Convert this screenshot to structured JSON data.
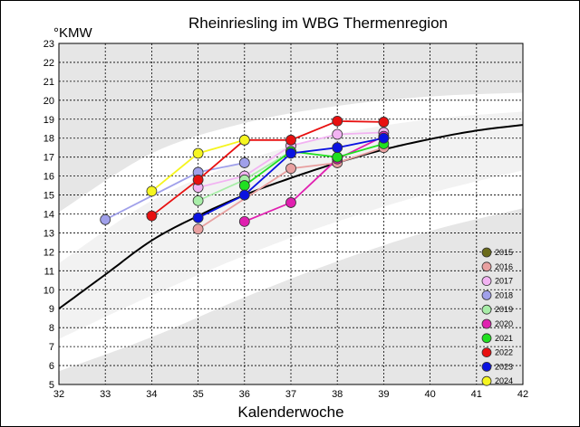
{
  "chart_data": {
    "type": "line",
    "title": "Rheinriesling im WBG Thermenregion",
    "xlabel": "Kalenderwoche",
    "ylabel": "°KMW",
    "xlim": [
      32,
      42
    ],
    "ylim": [
      5,
      23
    ],
    "x_ticks": [
      "32",
      "33",
      "34",
      "35",
      "36",
      "37",
      "38",
      "39",
      "40",
      "41",
      "42"
    ],
    "y_ticks": [
      "5",
      "6",
      "7",
      "8",
      "9",
      "10",
      "11",
      "12",
      "13",
      "14",
      "15",
      "16",
      "17",
      "18",
      "19",
      "20",
      "21",
      "22",
      "23"
    ],
    "grid": true,
    "legend_position": "bottom-right",
    "reference_curve": [
      [
        32,
        9.0
      ],
      [
        33,
        10.8
      ],
      [
        34,
        12.6
      ],
      [
        35,
        13.9
      ],
      [
        36,
        15.0
      ],
      [
        37,
        15.9
      ],
      [
        38,
        16.7
      ],
      [
        39,
        17.4
      ],
      [
        40,
        17.95
      ],
      [
        41,
        18.4
      ],
      [
        42,
        18.7
      ]
    ],
    "band_outer_upper": [
      [
        32,
        14.1
      ],
      [
        34,
        17.2
      ],
      [
        36,
        18.8
      ],
      [
        38,
        19.7
      ],
      [
        40,
        20.2
      ],
      [
        42,
        20.4
      ]
    ],
    "band_inner_upper": [
      [
        32,
        11.4
      ],
      [
        34,
        14.7
      ],
      [
        36,
        16.8
      ],
      [
        38,
        18.2
      ],
      [
        40,
        19.0
      ],
      [
        42,
        19.4
      ]
    ],
    "band_inner_lower": [
      [
        32,
        7.4
      ],
      [
        34,
        9.7
      ],
      [
        36,
        11.8
      ],
      [
        38,
        13.6
      ],
      [
        40,
        15.1
      ],
      [
        42,
        16.3
      ]
    ],
    "band_outer_lower": [
      [
        32,
        5.7
      ],
      [
        34,
        7.5
      ],
      [
        36,
        9.6
      ],
      [
        38,
        11.5
      ],
      [
        40,
        13.1
      ],
      [
        42,
        14.3
      ]
    ],
    "series": [
      {
        "name": "2015",
        "color": "#6b6b1a",
        "x": [],
        "y": []
      },
      {
        "name": "2016",
        "color": "#e8a0a0",
        "x": [
          35,
          37,
          38,
          39
        ],
        "y": [
          13.2,
          16.4,
          16.7,
          17.5
        ]
      },
      {
        "name": "2017",
        "color": "#f2b3f2",
        "x": [
          35,
          36,
          37,
          38,
          39
        ],
        "y": [
          15.4,
          16.0,
          17.6,
          18.2,
          18.3
        ]
      },
      {
        "name": "2018",
        "color": "#a0a0ea",
        "x": [
          33,
          35,
          36
        ],
        "y": [
          13.7,
          16.2,
          16.7
        ]
      },
      {
        "name": "2019",
        "color": "#a8eda8",
        "x": [
          35,
          36,
          37
        ],
        "y": [
          14.7,
          15.8,
          17.3
        ]
      },
      {
        "name": "2020",
        "color": "#e020b0",
        "x": [
          36,
          37,
          38,
          39
        ],
        "y": [
          13.6,
          14.6,
          16.9,
          18.1
        ]
      },
      {
        "name": "2021",
        "color": "#20e020",
        "x": [
          36,
          37,
          38,
          39
        ],
        "y": [
          15.5,
          17.3,
          17.0,
          17.7
        ]
      },
      {
        "name": "2022",
        "color": "#e81010",
        "x": [
          34,
          35,
          36,
          37,
          38,
          39
        ],
        "y": [
          13.9,
          15.8,
          17.9,
          17.9,
          18.9,
          18.85
        ]
      },
      {
        "name": "2023",
        "color": "#0a12e0",
        "x": [
          35,
          36,
          37,
          38,
          39
        ],
        "y": [
          13.8,
          15.0,
          17.2,
          17.5,
          18.0
        ]
      },
      {
        "name": "2024",
        "color": "#f5f520",
        "x": [
          34,
          35,
          36
        ],
        "y": [
          15.2,
          17.2,
          17.9
        ]
      }
    ]
  }
}
